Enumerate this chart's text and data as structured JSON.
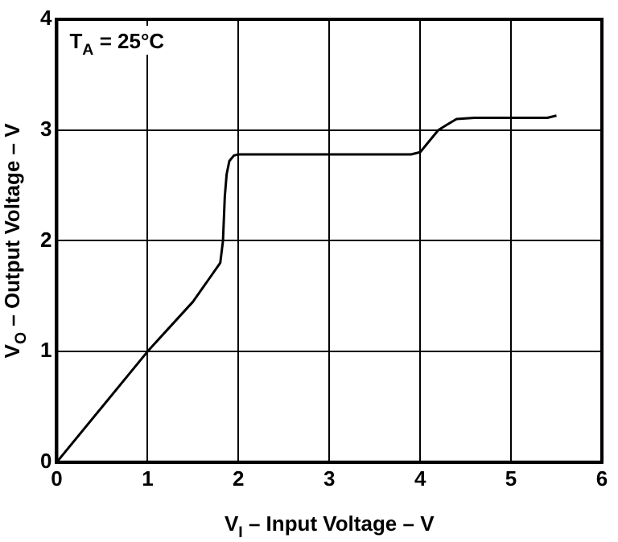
{
  "chart_data": {
    "type": "line",
    "xlabel": "V$_{I}$ – Input Voltage – V",
    "ylabel": "V$_{O}$ – Output Voltage – V",
    "annotations": [
      "T$_{A}$ = 25°C"
    ],
    "series": [
      {
        "color": "#000000",
        "x": [
          0,
          0.5,
          1,
          1.5,
          1.8,
          1.83,
          1.85,
          1.87,
          1.9,
          1.95,
          2.0,
          3.0,
          3.9,
          4.0,
          4.2,
          4.3,
          4.4,
          4.6,
          5.4,
          5.5
        ],
        "values": [
          0,
          0.5,
          1,
          1.45,
          1.8,
          2.0,
          2.4,
          2.6,
          2.72,
          2.77,
          2.78,
          2.78,
          2.78,
          2.8,
          3.0,
          3.05,
          3.1,
          3.11,
          3.11,
          3.13
        ]
      }
    ],
    "xlim": [
      0,
      6
    ],
    "xticks": [
      0,
      1,
      2,
      3,
      4,
      5,
      6
    ],
    "ylim": [
      0,
      4
    ],
    "yticks": [
      0,
      1,
      2,
      3,
      4
    ],
    "grid": true,
    "legend": false,
    "marker": "none",
    "line_style": "solid"
  }
}
